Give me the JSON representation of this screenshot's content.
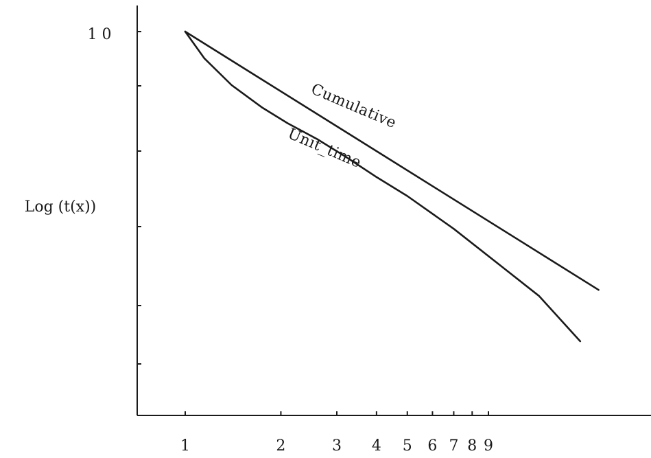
{
  "chart_data": {
    "type": "line",
    "title": "",
    "xlabel": "",
    "ylabel": "Log (t(x))",
    "x_scale": "log",
    "xlim": [
      0.75,
      20
    ],
    "x_ticks": [
      1,
      2,
      3,
      4,
      5,
      6,
      7,
      8,
      9
    ],
    "x_tick_labels": [
      "1",
      "2",
      "3",
      "4",
      "5",
      "6",
      "7",
      "8",
      "9"
    ],
    "y_scale": "log",
    "ylim": [
      0.5,
      12
    ],
    "y_top_label": "1 0",
    "y_top_value": 10,
    "y_unlabeled_tick_count": 5,
    "grid": false,
    "legend": "none",
    "series": [
      {
        "name": "Cumulative",
        "label_text": "Cumulative",
        "x": [
          1,
          20
        ],
        "y": [
          10,
          1.67
        ]
      },
      {
        "name": "Unit time",
        "label_text": "Unit_time",
        "x": [
          1,
          1.15,
          1.4,
          1.75,
          2.1,
          2.6,
          3.2,
          4.0,
          5.0,
          7.0,
          10.0,
          13.0,
          17.5
        ],
        "y": [
          10,
          8.3,
          6.9,
          5.9,
          5.3,
          4.75,
          4.2,
          3.65,
          3.2,
          2.55,
          1.95,
          1.6,
          1.17
        ]
      }
    ]
  }
}
